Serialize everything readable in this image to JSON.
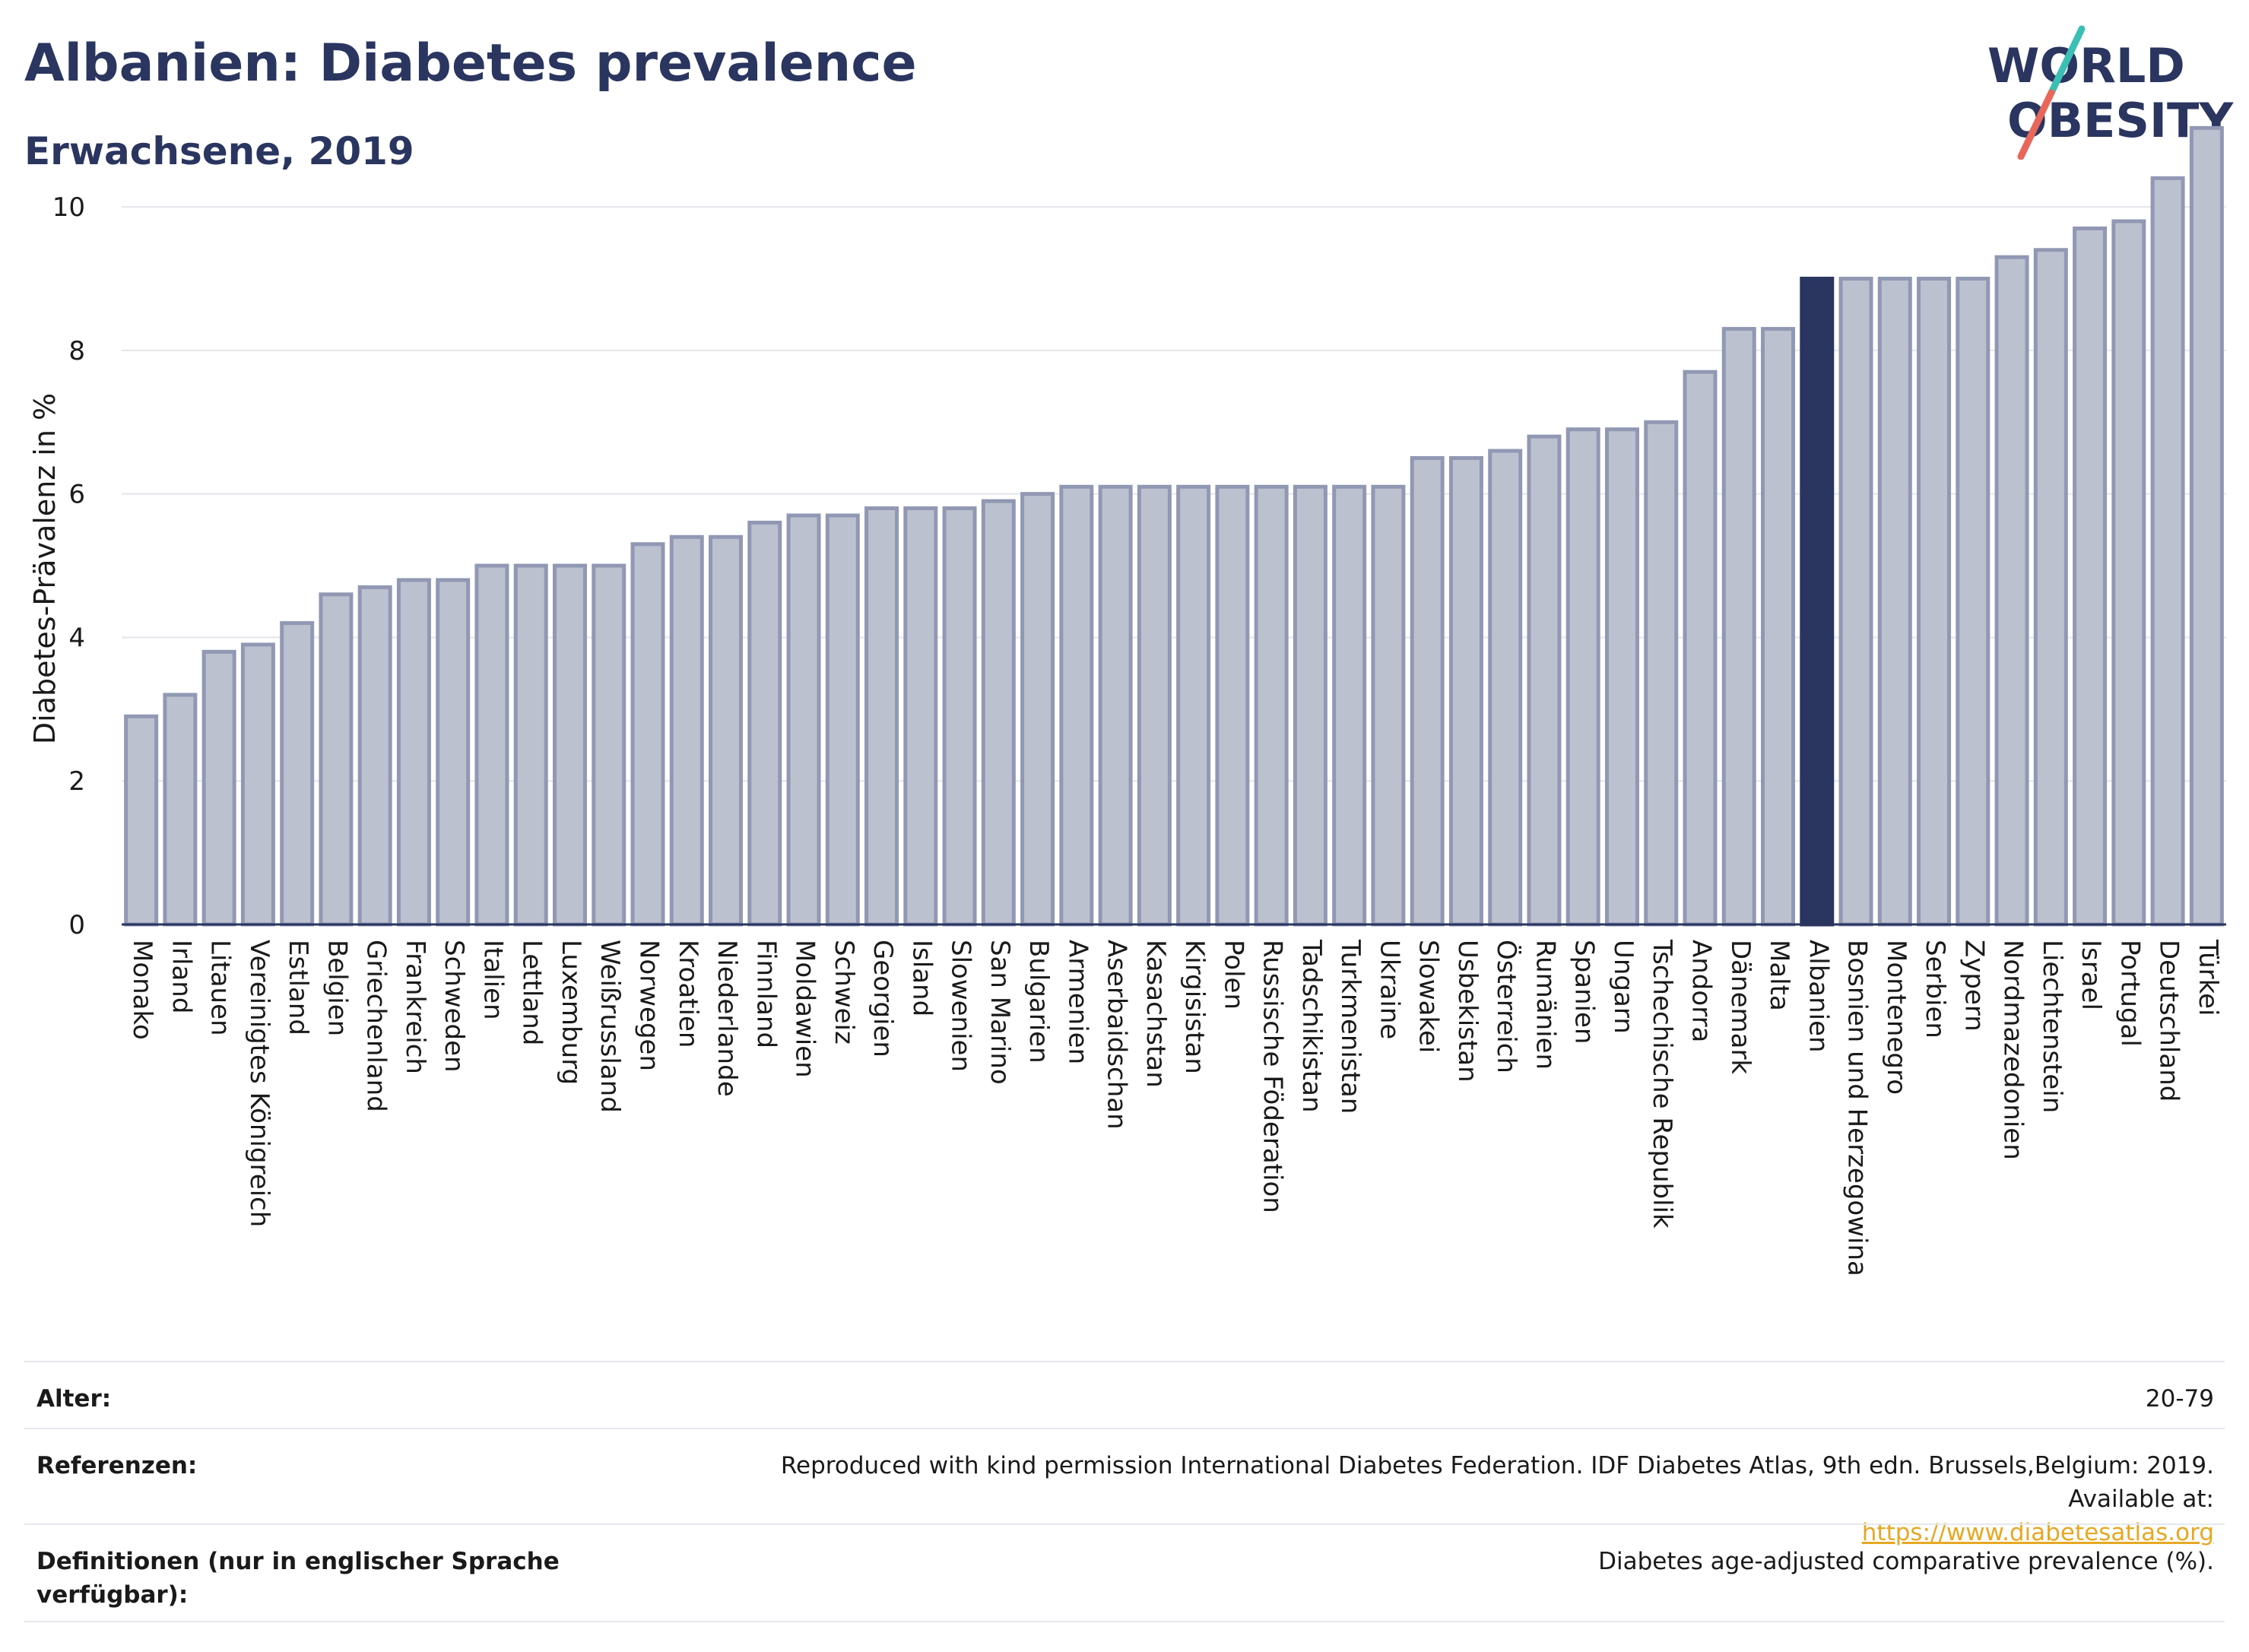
{
  "header": {
    "title": "Albanien: Diabetes prevalence",
    "subtitle": "Erwachsene, 2019",
    "logo_line1": "WORLD",
    "logo_line2": "OBESITY"
  },
  "colors": {
    "bar_fill": "#bcc1d0",
    "bar_stroke": "#9198b3",
    "highlight": "#2a3560",
    "grid": "#e4e6ec",
    "axis": "#2a3560",
    "logo_teal": "#3bbfb5",
    "logo_coral": "#e8675a"
  },
  "chart_data": {
    "type": "bar",
    "title": "Albanien: Diabetes prevalence",
    "subtitle": "Erwachsene, 2019",
    "xlabel": "",
    "ylabel": "Diabetes-Prävalenz in %",
    "ylim": [
      0,
      11.4
    ],
    "yticks": [
      0,
      2,
      4,
      6,
      8,
      10
    ],
    "grid": true,
    "highlight": "Albanien",
    "categories": [
      "Monako",
      "Irland",
      "Litauen",
      "Vereinigtes Königreich",
      "Estland",
      "Belgien",
      "Griechenland",
      "Frankreich",
      "Schweden",
      "Italien",
      "Lettland",
      "Luxemburg",
      "Weißrussland",
      "Norwegen",
      "Kroatien",
      "Niederlande",
      "Finnland",
      "Moldawien",
      "Schweiz",
      "Georgien",
      "Island",
      "Slowenien",
      "San Marino",
      "Bulgarien",
      "Armenien",
      "Aserbaidschan",
      "Kasachstan",
      "Kirgisistan",
      "Polen",
      "Russische Föderation",
      "Tadschikistan",
      "Turkmenistan",
      "Ukraine",
      "Slowakei",
      "Usbekistan",
      "Österreich",
      "Rumänien",
      "Spanien",
      "Ungarn",
      "Tschechische Republik",
      "Andorra",
      "Dänemark",
      "Malta",
      "Albanien",
      "Bosnien und Herzegowina",
      "Montenegro",
      "Serbien",
      "Zypern",
      "Nordmazedonien",
      "Liechtenstein",
      "Israel",
      "Portugal",
      "Deutschland",
      "Türkei"
    ],
    "values": [
      2.9,
      3.2,
      3.8,
      3.9,
      4.2,
      4.6,
      4.7,
      4.8,
      4.8,
      5.0,
      5.0,
      5.0,
      5.0,
      5.3,
      5.4,
      5.4,
      5.6,
      5.7,
      5.7,
      5.8,
      5.8,
      5.8,
      5.9,
      6.0,
      6.1,
      6.1,
      6.1,
      6.1,
      6.1,
      6.1,
      6.1,
      6.1,
      6.1,
      6.5,
      6.5,
      6.6,
      6.8,
      6.9,
      6.9,
      7.0,
      7.7,
      8.3,
      8.3,
      9.0,
      9.0,
      9.0,
      9.0,
      9.0,
      9.3,
      9.4,
      9.7,
      9.8,
      10.4,
      11.1
    ]
  },
  "meta": {
    "alter_label": "Alter:",
    "alter_value": "20-79",
    "ref_label": "Referenzen:",
    "ref_text": "Reproduced with kind permission International Diabetes Federation. IDF Diabetes Atlas, 9th edn. Brussels,Belgium: 2019. Available at:",
    "ref_link": "https://www.diabetesatlas.org",
    "def_label": "Definitionen (nur in englischer Sprache verfügbar):",
    "def_value": "Diabetes age-adjusted comparative prevalence (%)."
  }
}
